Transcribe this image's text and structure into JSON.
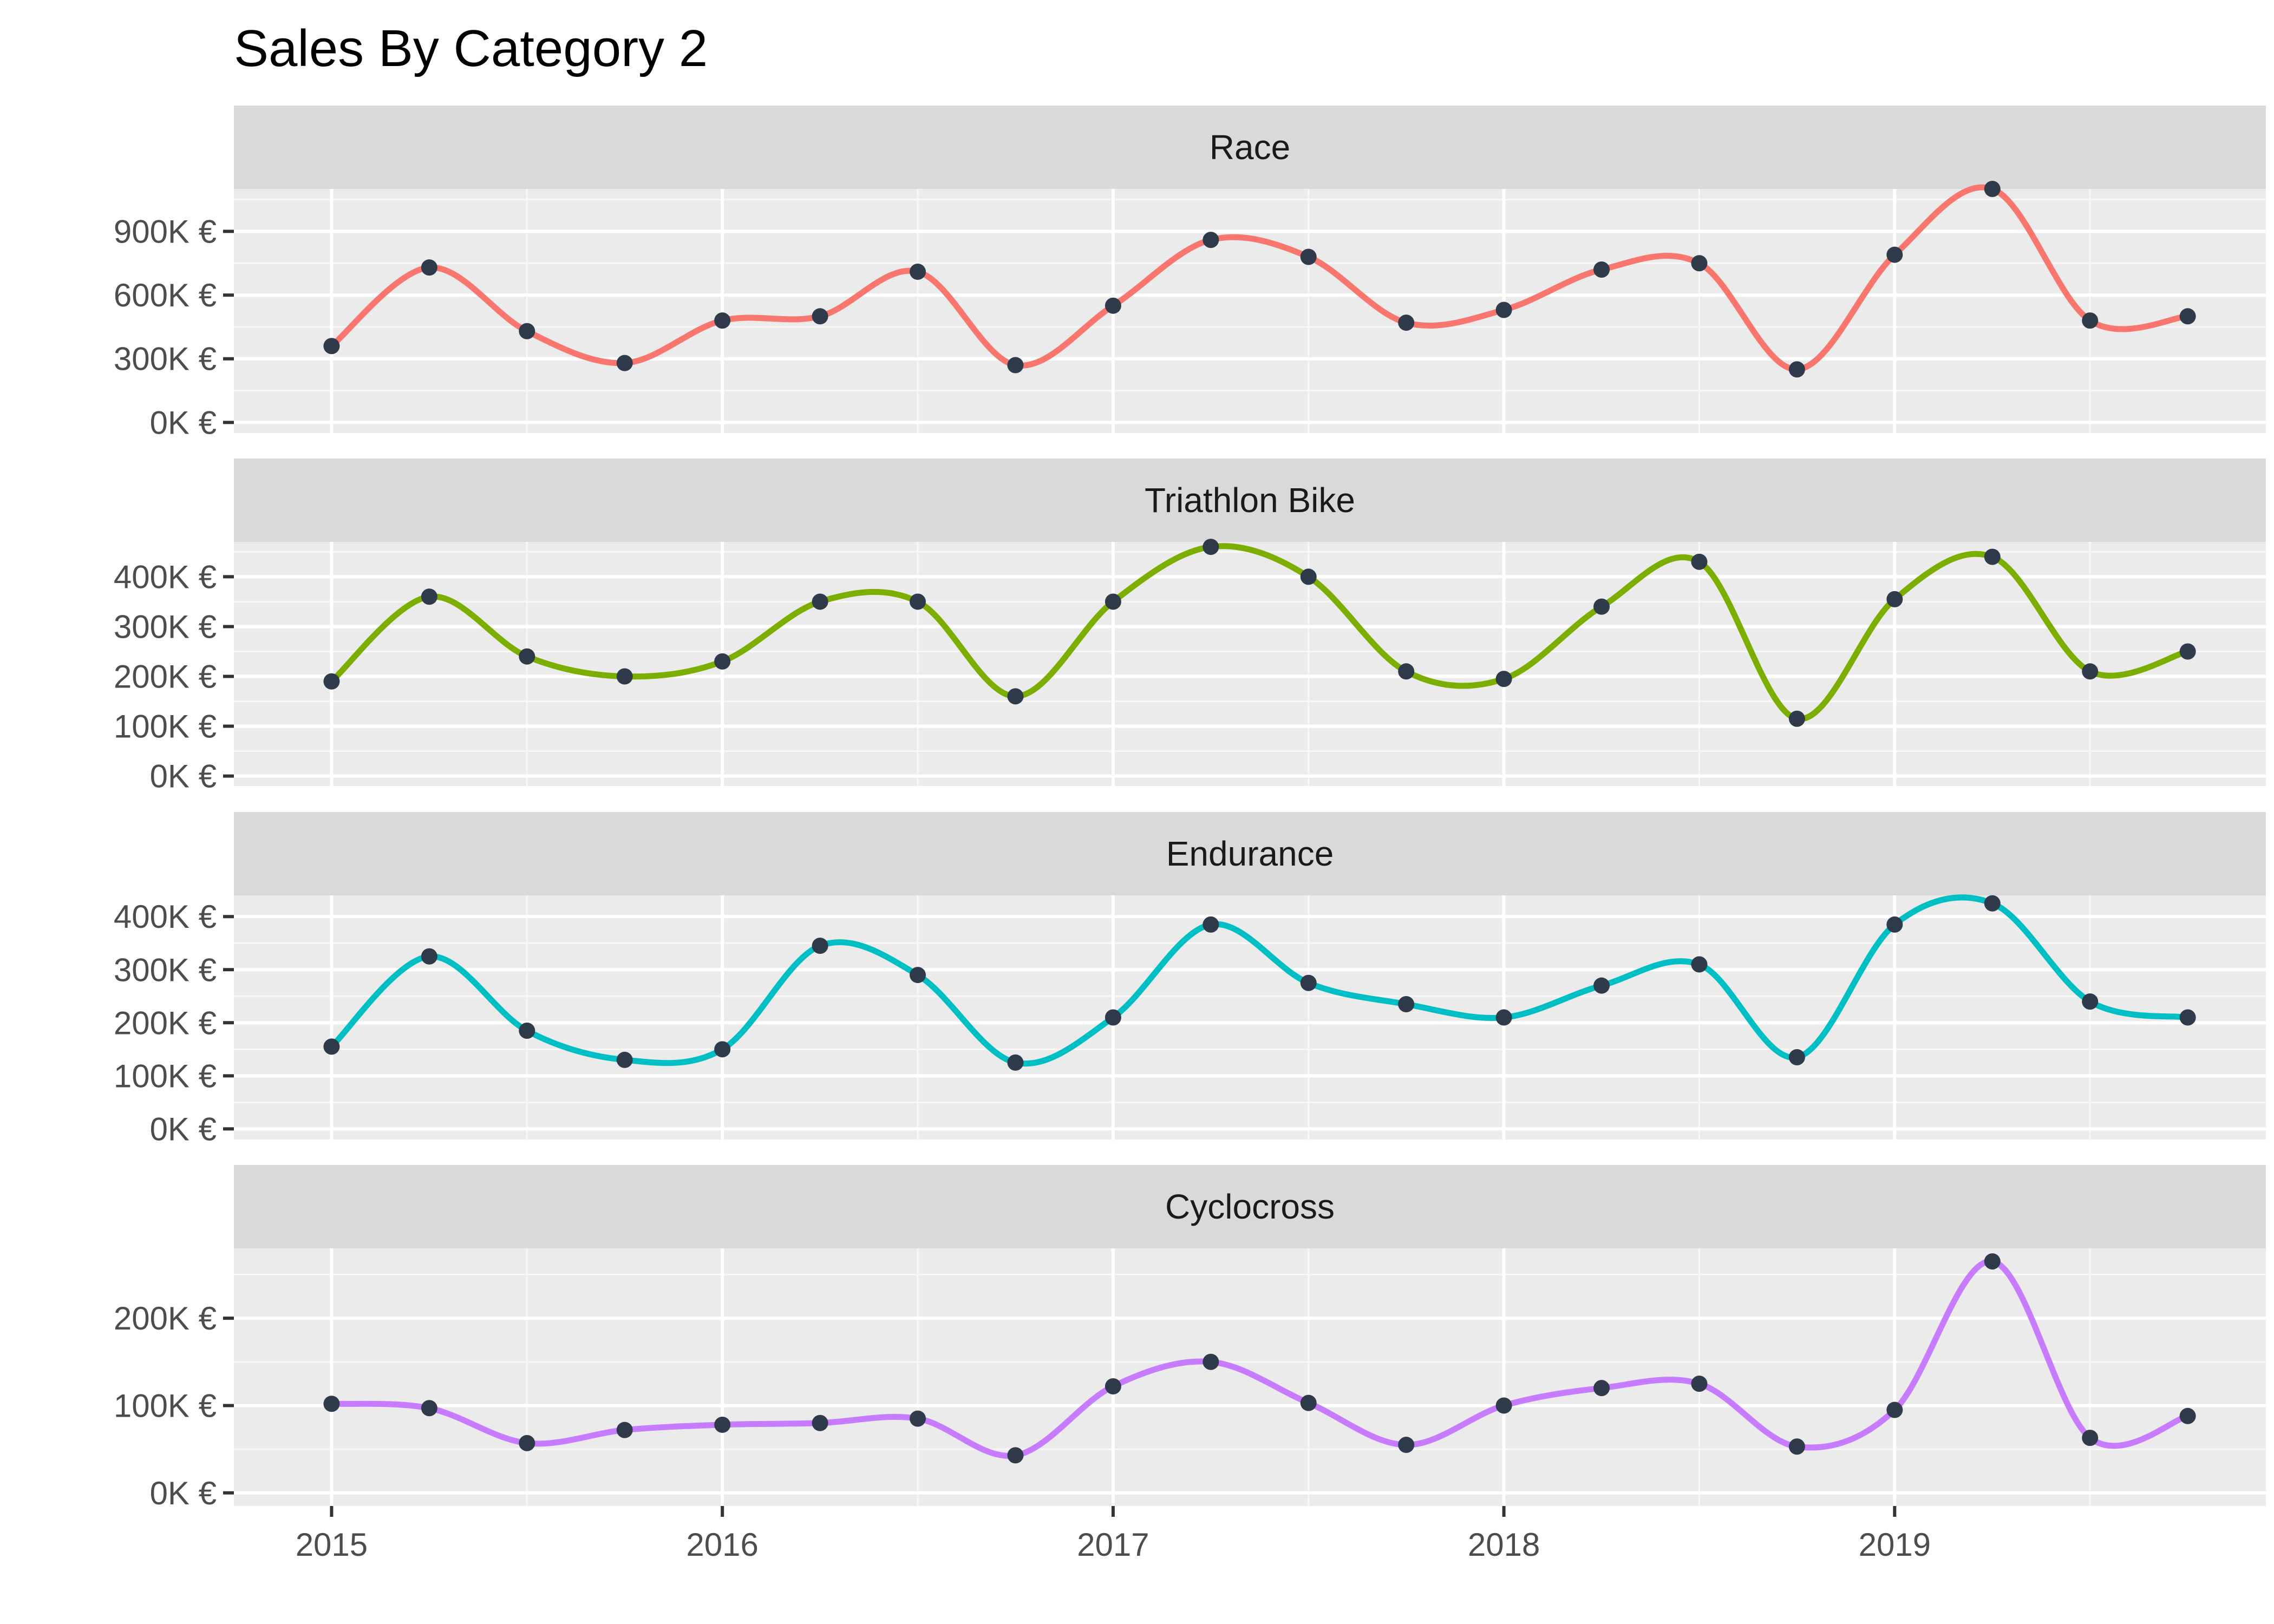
{
  "chart_data": {
    "type": "line",
    "title": "Sales By Category 2",
    "xlabel": "",
    "ylabel": "",
    "x_ticks": [
      "2015",
      "2016",
      "2017",
      "2018",
      "2019"
    ],
    "x_tick_values": [
      2015,
      2016,
      2017,
      2018,
      2019
    ],
    "xlim": [
      2014.75,
      2019.95
    ],
    "x": [
      "2015-Q1",
      "2015-Q2",
      "2015-Q3",
      "2015-Q4",
      "2016-Q1",
      "2016-Q2",
      "2016-Q3",
      "2016-Q4",
      "2017-Q1",
      "2017-Q2",
      "2017-Q3",
      "2017-Q4",
      "2018-Q1",
      "2018-Q2",
      "2018-Q3",
      "2018-Q4",
      "2019-Q1",
      "2019-Q2",
      "2019-Q3",
      "2019-Q4"
    ],
    "x_values": [
      2015,
      2015.25,
      2015.5,
      2015.75,
      2016,
      2016.25,
      2016.5,
      2016.75,
      2017,
      2017.25,
      2017.5,
      2017.75,
      2018,
      2018.25,
      2018.5,
      2018.75,
      2019,
      2019.25,
      2019.5,
      2019.75
    ],
    "smoothed": true,
    "grid": true,
    "legend": "none",
    "point_color": "#2f3a4a",
    "panels": [
      {
        "name": "Race",
        "color": "#F8766D",
        "ylim": [
          -50000,
          1100000
        ],
        "y_ticks": [
          0,
          300000,
          600000,
          900000
        ],
        "y_tick_labels": [
          "0K €",
          "300K €",
          "600K €",
          "900K €"
        ],
        "values": [
          360000,
          730000,
          430000,
          280000,
          480000,
          500000,
          710000,
          270000,
          550000,
          860000,
          780000,
          470000,
          530000,
          720000,
          750000,
          250000,
          790000,
          1100000,
          480000,
          500000
        ]
      },
      {
        "name": "Triathlon Bike",
        "color": "#7CAE00",
        "ylim": [
          -20000,
          470000
        ],
        "y_ticks": [
          0,
          100000,
          200000,
          300000,
          400000
        ],
        "y_tick_labels": [
          "0K €",
          "100K €",
          "200K €",
          "300K €",
          "400K €"
        ],
        "values": [
          190000,
          360000,
          240000,
          200000,
          230000,
          350000,
          350000,
          160000,
          350000,
          460000,
          400000,
          210000,
          195000,
          340000,
          430000,
          115000,
          355000,
          440000,
          210000,
          250000
        ]
      },
      {
        "name": "Endurance",
        "color": "#00BFC4",
        "ylim": [
          -20000,
          440000
        ],
        "y_ticks": [
          0,
          100000,
          200000,
          300000,
          400000
        ],
        "y_tick_labels": [
          "0K €",
          "100K €",
          "200K €",
          "300K €",
          "400K €"
        ],
        "values": [
          155000,
          325000,
          185000,
          130000,
          150000,
          345000,
          290000,
          125000,
          210000,
          385000,
          275000,
          235000,
          210000,
          270000,
          310000,
          135000,
          385000,
          425000,
          240000,
          210000
        ]
      },
      {
        "name": "Cyclocross",
        "color": "#C77CFF",
        "ylim": [
          -15000,
          280000
        ],
        "y_ticks": [
          0,
          100000,
          200000
        ],
        "y_tick_labels": [
          "0K €",
          "100K €",
          "200K €"
        ],
        "values": [
          102000,
          97000,
          57000,
          72000,
          78000,
          80000,
          85000,
          43000,
          122000,
          150000,
          103000,
          55000,
          100000,
          120000,
          125000,
          53000,
          95000,
          265000,
          63000,
          88000
        ]
      }
    ]
  }
}
